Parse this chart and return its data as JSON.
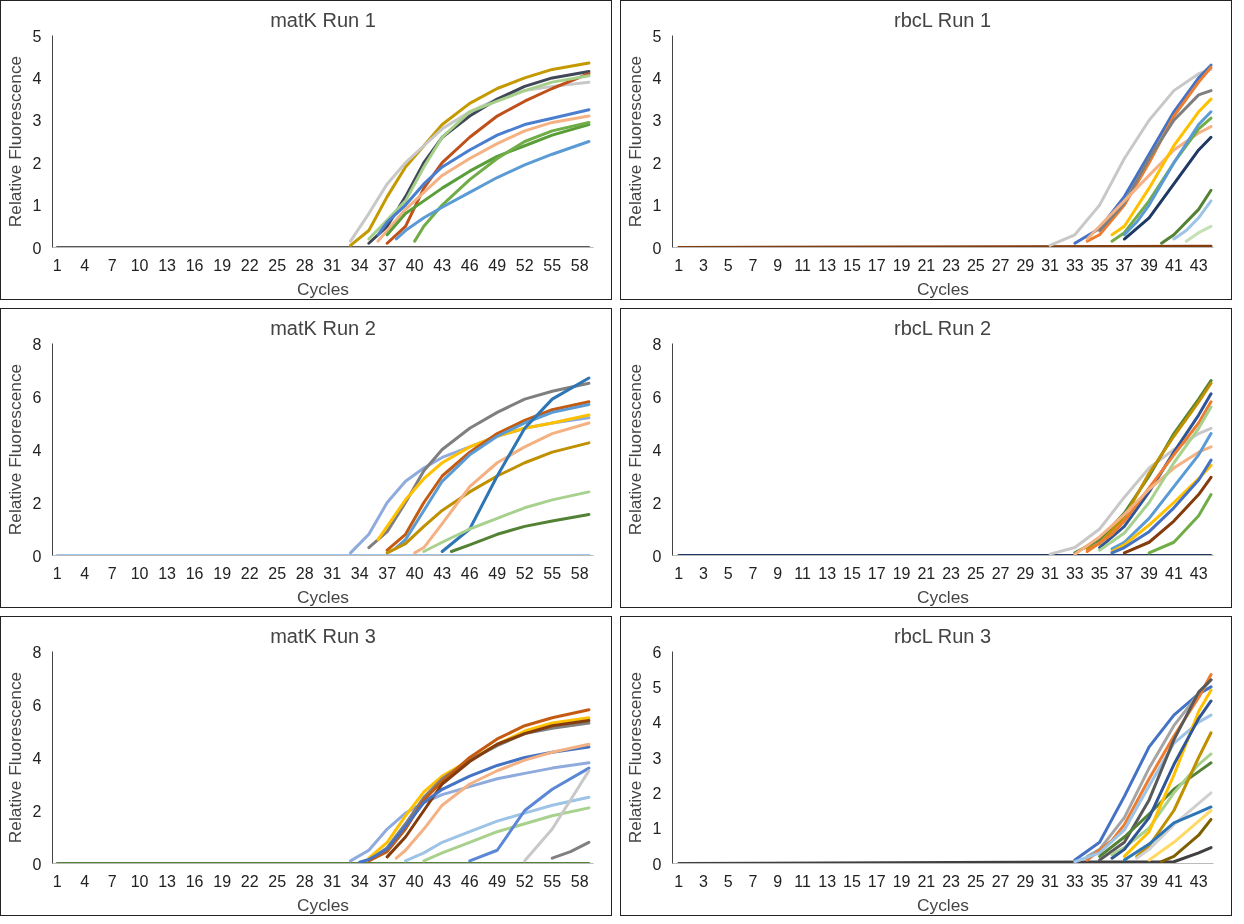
{
  "chart_data": [
    {
      "type": "line",
      "title": "matK Run 1",
      "xlabel": "Cycles",
      "ylabel": "Relative Fluorescence",
      "xlim": [
        0.5,
        59.5
      ],
      "xticks": [
        1,
        4,
        7,
        10,
        13,
        16,
        19,
        22,
        25,
        28,
        31,
        34,
        37,
        40,
        43,
        46,
        49,
        52,
        55,
        58
      ],
      "ylim": [
        0,
        5
      ],
      "yticks": [
        0,
        1,
        2,
        3,
        4,
        5
      ],
      "grid": false,
      "series": [
        {
          "color": "#595959",
          "x": [
            1,
            59
          ],
          "values": [
            0,
            0
          ]
        },
        {
          "color": "#c49a00",
          "x": [
            33,
            35,
            37,
            39,
            41,
            43,
            46,
            49,
            52,
            55,
            59
          ],
          "values": [
            0.05,
            0.4,
            1.2,
            1.9,
            2.4,
            2.9,
            3.4,
            3.75,
            4.0,
            4.2,
            4.35
          ]
        },
        {
          "color": "#c8c8c8",
          "x": [
            33,
            35,
            37,
            39,
            41,
            43,
            46,
            49,
            52,
            55,
            59
          ],
          "values": [
            0.15,
            0.8,
            1.5,
            2.0,
            2.4,
            2.8,
            3.2,
            3.5,
            3.7,
            3.8,
            3.9
          ]
        },
        {
          "color": "#404858",
          "x": [
            35,
            37,
            39,
            41,
            43,
            46,
            49,
            52,
            55,
            59
          ],
          "values": [
            0.1,
            0.5,
            1.2,
            2.0,
            2.6,
            3.1,
            3.5,
            3.8,
            4.0,
            4.15
          ]
        },
        {
          "color": "#c0501a",
          "x": [
            37,
            39,
            41,
            43,
            46,
            49,
            52,
            55,
            59
          ],
          "values": [
            0.1,
            0.5,
            1.4,
            2.0,
            2.6,
            3.1,
            3.45,
            3.75,
            4.1
          ]
        },
        {
          "color": "#a6d08a",
          "x": [
            35,
            37,
            39,
            41,
            43,
            46,
            49,
            52,
            55,
            59
          ],
          "values": [
            0.2,
            0.65,
            1.1,
            1.9,
            2.6,
            3.2,
            3.45,
            3.7,
            3.9,
            4.05
          ]
        },
        {
          "color": "#4a7fd0",
          "x": [
            36,
            37,
            39,
            41,
            43,
            46,
            49,
            52,
            55,
            59
          ],
          "values": [
            0.3,
            0.6,
            1.0,
            1.5,
            1.9,
            2.3,
            2.65,
            2.9,
            3.05,
            3.25
          ]
        },
        {
          "color": "#f4b183",
          "x": [
            36,
            37,
            39,
            41,
            43,
            46,
            49,
            52,
            55,
            59
          ],
          "values": [
            0.15,
            0.4,
            0.9,
            1.3,
            1.7,
            2.1,
            2.45,
            2.75,
            2.95,
            3.1
          ]
        },
        {
          "color": "#5a9e3a",
          "x": [
            37,
            39,
            41,
            43,
            46,
            49,
            52,
            55,
            59
          ],
          "values": [
            0.3,
            0.8,
            1.1,
            1.4,
            1.8,
            2.15,
            2.4,
            2.65,
            2.9
          ]
        },
        {
          "color": "#70ad47",
          "x": [
            40,
            41,
            43,
            46,
            49,
            52,
            55,
            59
          ],
          "values": [
            0.15,
            0.5,
            1.0,
            1.6,
            2.1,
            2.5,
            2.75,
            2.95
          ]
        },
        {
          "color": "#5b9bd5",
          "x": [
            38,
            39,
            41,
            43,
            46,
            49,
            52,
            55,
            59
          ],
          "values": [
            0.2,
            0.4,
            0.7,
            0.95,
            1.3,
            1.65,
            1.95,
            2.2,
            2.5
          ]
        }
      ]
    },
    {
      "type": "line",
      "title": "rbcL Run 1",
      "xlabel": "Cycles",
      "ylabel": "Relative Fluorescence",
      "xlim": [
        0.5,
        44.2
      ],
      "xticks": [
        1,
        3,
        5,
        7,
        9,
        11,
        13,
        15,
        17,
        19,
        21,
        23,
        25,
        27,
        29,
        31,
        33,
        35,
        37,
        39,
        41,
        43
      ],
      "ylim": [
        0,
        5
      ],
      "yticks": [
        0,
        1,
        2,
        3,
        4,
        5
      ],
      "grid": false,
      "series": [
        {
          "color": "#843c0c",
          "x": [
            1,
            44
          ],
          "values": [
            0,
            0.03
          ]
        },
        {
          "color": "#c8c8c8",
          "x": [
            31,
            33,
            35,
            37,
            39,
            41,
            43,
            44
          ],
          "values": [
            0.05,
            0.3,
            1.0,
            2.1,
            3.0,
            3.7,
            4.1,
            4.2
          ]
        },
        {
          "color": "#4472c4",
          "x": [
            33,
            35,
            37,
            39,
            41,
            43,
            44
          ],
          "values": [
            0.1,
            0.45,
            1.2,
            2.2,
            3.2,
            4.0,
            4.3
          ]
        },
        {
          "color": "#ed7d31",
          "x": [
            34,
            35,
            37,
            39,
            41,
            43,
            44
          ],
          "values": [
            0.15,
            0.3,
            1.0,
            2.0,
            3.1,
            3.9,
            4.25
          ]
        },
        {
          "color": "#7f7f7f",
          "x": [
            35,
            37,
            39,
            41,
            43,
            44
          ],
          "values": [
            0.4,
            1.05,
            2.1,
            3.0,
            3.6,
            3.7
          ]
        },
        {
          "color": "#f4b183",
          "x": [
            34,
            35,
            37,
            39,
            41,
            43,
            44
          ],
          "values": [
            0.2,
            0.5,
            1.1,
            1.7,
            2.3,
            2.7,
            2.85
          ]
        },
        {
          "color": "#ffc000",
          "x": [
            36,
            37,
            39,
            41,
            43,
            44
          ],
          "values": [
            0.3,
            0.5,
            1.4,
            2.4,
            3.2,
            3.5
          ]
        },
        {
          "color": "#70ad47",
          "x": [
            36,
            37,
            39,
            41,
            43,
            44
          ],
          "values": [
            0.15,
            0.35,
            1.1,
            2.0,
            2.8,
            3.05
          ]
        },
        {
          "color": "#1f3864",
          "x": [
            37,
            39,
            41,
            43,
            44
          ],
          "values": [
            0.2,
            0.7,
            1.5,
            2.3,
            2.6
          ]
        },
        {
          "color": "#5b9bd5",
          "x": [
            37,
            38,
            39,
            41,
            43,
            44
          ],
          "values": [
            0.3,
            0.6,
            1.0,
            2.0,
            2.9,
            3.2
          ]
        },
        {
          "color": "#548235",
          "x": [
            40,
            41,
            43,
            44
          ],
          "values": [
            0.1,
            0.3,
            0.9,
            1.35
          ]
        },
        {
          "color": "#9dc3e6",
          "x": [
            41,
            42,
            43,
            44
          ],
          "values": [
            0.2,
            0.4,
            0.7,
            1.1
          ]
        },
        {
          "color": "#c5e0b4",
          "x": [
            42,
            43,
            44
          ],
          "values": [
            0.15,
            0.35,
            0.5
          ]
        }
      ]
    },
    {
      "type": "line",
      "title": "matK Run 2",
      "xlabel": "Cycles",
      "ylabel": "Relative Fluorescence",
      "xlim": [
        0.5,
        59.5
      ],
      "xticks": [
        1,
        4,
        7,
        10,
        13,
        16,
        19,
        22,
        25,
        28,
        31,
        34,
        37,
        40,
        43,
        46,
        49,
        52,
        55,
        58
      ],
      "ylim": [
        0,
        8
      ],
      "yticks": [
        0,
        2,
        4,
        6,
        8
      ],
      "grid": false,
      "series": [
        {
          "color": "#9dc3e6",
          "x": [
            1,
            59
          ],
          "values": [
            0,
            0
          ]
        },
        {
          "color": "#8faadc",
          "x": [
            33,
            35,
            37,
            39,
            41,
            43,
            46,
            49,
            52,
            55,
            59
          ],
          "values": [
            0.1,
            0.8,
            2.0,
            2.8,
            3.3,
            3.7,
            4.1,
            4.5,
            4.8,
            5.0,
            5.2
          ]
        },
        {
          "color": "#7f7f7f",
          "x": [
            35,
            37,
            39,
            41,
            43,
            46,
            49,
            52,
            55,
            59
          ],
          "values": [
            0.3,
            0.9,
            2.0,
            3.2,
            4.0,
            4.8,
            5.4,
            5.9,
            6.2,
            6.5
          ]
        },
        {
          "color": "#ffc000",
          "x": [
            36,
            37,
            39,
            41,
            43,
            46,
            49,
            52,
            55,
            59
          ],
          "values": [
            0.6,
            1.1,
            2.1,
            2.9,
            3.5,
            4.1,
            4.5,
            4.8,
            5.0,
            5.3
          ]
        },
        {
          "color": "#c55a11",
          "x": [
            37,
            39,
            41,
            43,
            46,
            49,
            52,
            55,
            59
          ],
          "values": [
            0.2,
            0.8,
            2.0,
            3.0,
            3.9,
            4.6,
            5.1,
            5.5,
            5.8
          ]
        },
        {
          "color": "#5b9bd5",
          "x": [
            38,
            39,
            41,
            43,
            46,
            49,
            52,
            55,
            59
          ],
          "values": [
            0.3,
            0.6,
            1.7,
            2.8,
            3.8,
            4.5,
            5.0,
            5.4,
            5.7
          ]
        },
        {
          "color": "#bf9000",
          "x": [
            37,
            39,
            41,
            43,
            46,
            49,
            52,
            55,
            59
          ],
          "values": [
            0.1,
            0.45,
            1.1,
            1.7,
            2.4,
            3.0,
            3.5,
            3.9,
            4.25
          ]
        },
        {
          "color": "#f4b183",
          "x": [
            40,
            41,
            43,
            46,
            49,
            52,
            55,
            59
          ],
          "values": [
            0.1,
            0.3,
            1.2,
            2.6,
            3.5,
            4.1,
            4.6,
            5.0
          ]
        },
        {
          "color": "#2e75b6",
          "x": [
            43,
            46,
            49,
            52,
            55,
            59
          ],
          "values": [
            0.15,
            1.0,
            3.0,
            4.8,
            5.9,
            6.7
          ]
        },
        {
          "color": "#a9d18e",
          "x": [
            41,
            43,
            46,
            49,
            52,
            55,
            59
          ],
          "values": [
            0.15,
            0.5,
            1.0,
            1.4,
            1.8,
            2.1,
            2.4
          ]
        },
        {
          "color": "#548235",
          "x": [
            44,
            46,
            49,
            52,
            55,
            59
          ],
          "values": [
            0.15,
            0.4,
            0.8,
            1.1,
            1.3,
            1.55
          ]
        }
      ]
    },
    {
      "type": "line",
      "title": "rbcL Run 2",
      "xlabel": "Cycles",
      "ylabel": "Relative Fluorescence",
      "xlim": [
        0.5,
        44.2
      ],
      "xticks": [
        1,
        3,
        5,
        7,
        9,
        11,
        13,
        15,
        17,
        19,
        21,
        23,
        25,
        27,
        29,
        31,
        33,
        35,
        37,
        39,
        41,
        43
      ],
      "ylim": [
        0,
        8
      ],
      "yticks": [
        0,
        2,
        4,
        6,
        8
      ],
      "grid": false,
      "series": [
        {
          "color": "#203864",
          "x": [
            1,
            44
          ],
          "values": [
            0,
            0
          ]
        },
        {
          "color": "#c8c8c8",
          "x": [
            31,
            33,
            35,
            37,
            39,
            41,
            43,
            44
          ],
          "values": [
            0.05,
            0.3,
            1.0,
            2.2,
            3.3,
            4.0,
            4.6,
            4.8
          ]
        },
        {
          "color": "#548235",
          "x": [
            33,
            35,
            37,
            39,
            41,
            43,
            44
          ],
          "values": [
            0.1,
            0.6,
            1.6,
            3.0,
            4.6,
            5.9,
            6.6
          ]
        },
        {
          "color": "#bf9000",
          "x": [
            34,
            35,
            37,
            39,
            41,
            43,
            44
          ],
          "values": [
            0.25,
            0.45,
            1.45,
            3.1,
            4.5,
            5.8,
            6.5
          ]
        },
        {
          "color": "#2f5597",
          "x": [
            35,
            37,
            39,
            41,
            43,
            44
          ],
          "values": [
            0.3,
            1.1,
            2.4,
            3.9,
            5.3,
            6.1
          ]
        },
        {
          "color": "#ed7d31",
          "x": [
            34,
            36,
            37,
            39,
            41,
            43,
            44
          ],
          "values": [
            0.15,
            0.8,
            1.3,
            2.55,
            3.8,
            5.0,
            5.8
          ]
        },
        {
          "color": "#f4b183",
          "x": [
            33,
            35,
            37,
            39,
            41,
            43,
            44
          ],
          "values": [
            0.05,
            0.7,
            1.55,
            2.5,
            3.3,
            3.9,
            4.1
          ]
        },
        {
          "color": "#a9d18e",
          "x": [
            35,
            37,
            39,
            41,
            43,
            44
          ],
          "values": [
            0.2,
            0.85,
            2.0,
            3.5,
            4.8,
            5.6
          ]
        },
        {
          "color": "#5b9bd5",
          "x": [
            36,
            37,
            39,
            41,
            43,
            44
          ],
          "values": [
            0.25,
            0.5,
            1.4,
            2.6,
            3.8,
            4.6
          ]
        },
        {
          "color": "#ffc000",
          "x": [
            36,
            37,
            39,
            41,
            43,
            44
          ],
          "values": [
            0.15,
            0.4,
            1.15,
            2.0,
            2.9,
            3.4
          ]
        },
        {
          "color": "#4472c4",
          "x": [
            36,
            37,
            39,
            41,
            43,
            44
          ],
          "values": [
            0.1,
            0.3,
            0.9,
            1.8,
            2.85,
            3.6
          ]
        },
        {
          "color": "#843c0c",
          "x": [
            37,
            39,
            41,
            43,
            44
          ],
          "values": [
            0.1,
            0.5,
            1.3,
            2.3,
            2.95
          ]
        },
        {
          "color": "#70ad47",
          "x": [
            39,
            41,
            43,
            44
          ],
          "values": [
            0.1,
            0.5,
            1.5,
            2.3
          ]
        }
      ]
    },
    {
      "type": "line",
      "title": "matK Run 3",
      "xlabel": "Cycles",
      "ylabel": "Relative Fluorescence",
      "xlim": [
        0.5,
        59.5
      ],
      "xticks": [
        1,
        4,
        7,
        10,
        13,
        16,
        19,
        22,
        25,
        28,
        31,
        34,
        37,
        40,
        43,
        46,
        49,
        52,
        55,
        58
      ],
      "ylim": [
        0,
        8
      ],
      "yticks": [
        0,
        2,
        4,
        6,
        8
      ],
      "grid": false,
      "series": [
        {
          "color": "#548235",
          "x": [
            1,
            59
          ],
          "values": [
            0,
            0
          ]
        },
        {
          "color": "#8faadc",
          "x": [
            33,
            35,
            37,
            39,
            41,
            43,
            46,
            49,
            52,
            55,
            59
          ],
          "values": [
            0.1,
            0.5,
            1.3,
            1.9,
            2.3,
            2.6,
            2.9,
            3.2,
            3.4,
            3.6,
            3.8
          ]
        },
        {
          "color": "#ffc000",
          "x": [
            35,
            37,
            39,
            41,
            43,
            46,
            49,
            52,
            55,
            59
          ],
          "values": [
            0.2,
            0.8,
            1.8,
            2.7,
            3.3,
            3.9,
            4.5,
            5.0,
            5.3,
            5.5
          ]
        },
        {
          "color": "#7f7f7f",
          "x": [
            36,
            37,
            39,
            41,
            43,
            46,
            49,
            52,
            55,
            59
          ],
          "values": [
            0.35,
            0.6,
            1.5,
            2.5,
            3.2,
            3.9,
            4.45,
            4.9,
            5.1,
            5.3
          ]
        },
        {
          "color": "#c55a11",
          "x": [
            35,
            37,
            39,
            41,
            43,
            46,
            49,
            52,
            55,
            59
          ],
          "values": [
            0.1,
            0.45,
            1.3,
            2.4,
            3.1,
            4.0,
            4.7,
            5.2,
            5.5,
            5.8
          ]
        },
        {
          "color": "#843c0c",
          "x": [
            37,
            39,
            41,
            43,
            46,
            49,
            52,
            55,
            59
          ],
          "values": [
            0.25,
            1.0,
            2.0,
            3.0,
            3.85,
            4.5,
            4.9,
            5.2,
            5.4
          ]
        },
        {
          "color": "#4472c4",
          "x": [
            34,
            35,
            37,
            39,
            41,
            43,
            46,
            49,
            52,
            55,
            59
          ],
          "values": [
            0.05,
            0.15,
            0.55,
            1.4,
            2.3,
            2.8,
            3.3,
            3.7,
            4.0,
            4.2,
            4.4
          ]
        },
        {
          "color": "#f4b183",
          "x": [
            38,
            39,
            41,
            43,
            46,
            49,
            52,
            55,
            59
          ],
          "values": [
            0.2,
            0.5,
            1.3,
            2.2,
            3.0,
            3.5,
            3.9,
            4.2,
            4.5
          ]
        },
        {
          "color": "#9dc3e6",
          "x": [
            39,
            41,
            43,
            46,
            49,
            52,
            55,
            59
          ],
          "values": [
            0.1,
            0.4,
            0.8,
            1.2,
            1.6,
            1.9,
            2.2,
            2.5
          ]
        },
        {
          "color": "#a9d18e",
          "x": [
            41,
            43,
            46,
            49,
            52,
            55,
            59
          ],
          "values": [
            0.1,
            0.4,
            0.8,
            1.2,
            1.5,
            1.8,
            2.1
          ]
        },
        {
          "color": "#5b87d6",
          "x": [
            46,
            49,
            52,
            55,
            59
          ],
          "values": [
            0.1,
            0.5,
            2.0,
            2.8,
            3.6
          ]
        },
        {
          "color": "#c8c8c8",
          "x": [
            52,
            55,
            59
          ],
          "values": [
            0.1,
            1.3,
            3.5
          ]
        },
        {
          "color": "#808080",
          "x": [
            55,
            57,
            59
          ],
          "values": [
            0.2,
            0.45,
            0.8
          ]
        }
      ]
    },
    {
      "type": "line",
      "title": "rbcL Run 3",
      "xlabel": "Cycles",
      "ylabel": "Relative Fluorescence",
      "xlim": [
        0.5,
        44.2
      ],
      "xticks": [
        1,
        3,
        5,
        7,
        9,
        11,
        13,
        15,
        17,
        19,
        21,
        23,
        25,
        27,
        29,
        31,
        33,
        35,
        37,
        39,
        41,
        43
      ],
      "ylim": [
        0,
        6
      ],
      "yticks": [
        0,
        1,
        2,
        3,
        4,
        5,
        6
      ],
      "grid": false,
      "series": [
        {
          "color": "#404040",
          "x": [
            1,
            41,
            43,
            44
          ],
          "values": [
            0,
            0.05,
            0.3,
            0.45
          ]
        },
        {
          "color": "#4472c4",
          "x": [
            33,
            35,
            37,
            39,
            41,
            43,
            44
          ],
          "values": [
            0.1,
            0.6,
            1.9,
            3.3,
            4.2,
            4.8,
            5.0
          ]
        },
        {
          "color": "#a5a5a5",
          "x": [
            34,
            35,
            37,
            39,
            41,
            43,
            44
          ],
          "values": [
            0.2,
            0.4,
            1.3,
            2.7,
            3.9,
            4.8,
            5.2
          ]
        },
        {
          "color": "#ed7d31",
          "x": [
            34,
            36,
            37,
            39,
            41,
            43,
            44
          ],
          "values": [
            0.1,
            0.65,
            1.1,
            2.4,
            3.6,
            4.7,
            5.35
          ]
        },
        {
          "color": "#9dc3e6",
          "x": [
            33,
            35,
            37,
            39,
            41,
            43,
            44
          ],
          "values": [
            0.05,
            0.3,
            0.95,
            2.2,
            3.4,
            4.0,
            4.2
          ]
        },
        {
          "color": "#595959",
          "x": [
            35,
            37,
            39,
            41,
            43,
            44
          ],
          "values": [
            0.1,
            0.6,
            1.8,
            3.5,
            4.85,
            5.2
          ]
        },
        {
          "color": "#548235",
          "x": [
            35,
            37,
            39,
            41,
            43,
            44
          ],
          "values": [
            0.2,
            0.75,
            1.4,
            2.1,
            2.6,
            2.85
          ]
        },
        {
          "color": "#a9d18e",
          "x": [
            36,
            37,
            39,
            41,
            43,
            44
          ],
          "values": [
            0.25,
            0.45,
            1.0,
            2.0,
            2.8,
            3.1
          ]
        },
        {
          "color": "#ffc000",
          "x": [
            37,
            39,
            41,
            43,
            44
          ],
          "values": [
            0.2,
            0.9,
            2.5,
            4.3,
            4.9
          ]
        },
        {
          "color": "#2f5597",
          "x": [
            36,
            37,
            39,
            41,
            43,
            44
          ],
          "values": [
            0.15,
            0.4,
            1.3,
            2.8,
            4.1,
            4.6
          ]
        },
        {
          "color": "#bf9000",
          "x": [
            38,
            39,
            41,
            43,
            44
          ],
          "values": [
            0.2,
            0.5,
            1.5,
            3.0,
            3.7
          ]
        },
        {
          "color": "#d0d0d0",
          "x": [
            38,
            39,
            41,
            43,
            44
          ],
          "values": [
            0.15,
            0.4,
            1.1,
            1.7,
            2.0
          ]
        },
        {
          "color": "#2e75b6",
          "x": [
            37,
            39,
            41,
            43,
            44
          ],
          "values": [
            0.1,
            0.55,
            1.15,
            1.45,
            1.6
          ]
        },
        {
          "color": "#ffd966",
          "x": [
            39,
            41,
            43,
            44
          ],
          "values": [
            0.1,
            0.6,
            1.2,
            1.5
          ]
        },
        {
          "color": "#7f6000",
          "x": [
            40,
            41,
            43,
            44
          ],
          "values": [
            0.05,
            0.2,
            0.8,
            1.25
          ]
        }
      ]
    }
  ]
}
